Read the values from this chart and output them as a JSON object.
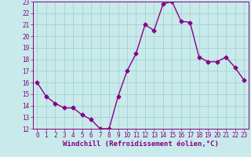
{
  "x": [
    0,
    1,
    2,
    3,
    4,
    5,
    6,
    7,
    8,
    9,
    10,
    11,
    12,
    13,
    14,
    15,
    16,
    17,
    18,
    19,
    20,
    21,
    22,
    23
  ],
  "y": [
    16.0,
    14.8,
    14.2,
    13.8,
    13.8,
    13.2,
    12.8,
    12.0,
    12.0,
    14.8,
    17.0,
    18.5,
    21.0,
    20.5,
    22.8,
    23.0,
    21.3,
    21.2,
    18.2,
    17.8,
    17.8,
    18.2,
    17.3,
    16.2
  ],
  "line_color": "#880088",
  "marker": "D",
  "marker_size": 2.5,
  "bg_color": "#c8eaea",
  "grid_color": "#a0cccc",
  "xlabel": "Windchill (Refroidissement éolien,°C)",
  "ylim": [
    12,
    23
  ],
  "xlim": [
    -0.5,
    23.5
  ],
  "yticks": [
    12,
    13,
    14,
    15,
    16,
    17,
    18,
    19,
    20,
    21,
    22,
    23
  ],
  "xticks": [
    0,
    1,
    2,
    3,
    4,
    5,
    6,
    7,
    8,
    9,
    10,
    11,
    12,
    13,
    14,
    15,
    16,
    17,
    18,
    19,
    20,
    21,
    22,
    23
  ],
  "tick_fontsize": 5.5,
  "xlabel_fontsize": 6.5,
  "linewidth": 1.0
}
